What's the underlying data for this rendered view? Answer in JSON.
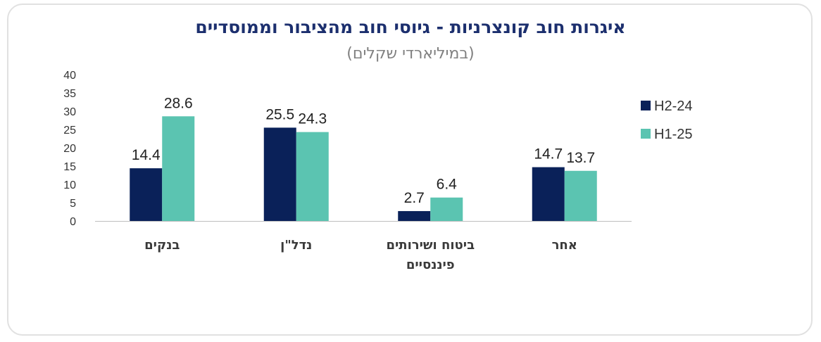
{
  "chart_data": {
    "type": "bar",
    "title": "איגרות חוב קונצרניות - גיוסי חוב מהציבור וממוסדיים",
    "subtitle": "(במיליארדי שקלים)",
    "categories": [
      [
        "בנקים"
      ],
      [
        "נדל\"ן"
      ],
      [
        "ביטוח ושירותים",
        "פיננסיים"
      ],
      [
        "אחר"
      ]
    ],
    "series": [
      {
        "name": "H2-24",
        "color": "#0a2159",
        "values": [
          14.4,
          25.5,
          2.7,
          14.7
        ]
      },
      {
        "name": "H1-25",
        "color": "#5bc4b1",
        "values": [
          28.6,
          24.3,
          6.4,
          13.7
        ]
      }
    ],
    "ylim": [
      0,
      40
    ],
    "yticks": [
      0,
      5,
      10,
      15,
      20,
      25,
      30,
      35,
      40
    ],
    "grid": false,
    "legend": "right"
  }
}
